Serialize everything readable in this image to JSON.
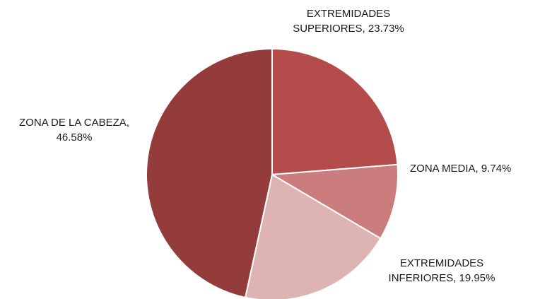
{
  "chart_data": {
    "type": "pie",
    "title": "",
    "legend": "none",
    "slices": [
      {
        "label_line1": "EXTREMIDADES",
        "label_line2": "SUPERIORES, 23.73%",
        "category": "EXTREMIDADES SUPERIORES",
        "value": 23.73,
        "color": "#B34C4A"
      },
      {
        "label_line1": "ZONA MEDIA, 9.74%",
        "label_line2": "",
        "category": "ZONA MEDIA",
        "value": 9.74,
        "color": "#CA7D7C"
      },
      {
        "label_line1": "EXTREMIDADES",
        "label_line2": "INFERIORES, 19.95%",
        "category": "EXTREMIDADES INFERIORES",
        "value": 19.95,
        "color": "#DDB3B3"
      },
      {
        "label_line1": "ZONA DE LA CABEZA,",
        "label_line2": "46.58%",
        "category": "ZONA DE LA CABEZA",
        "value": 46.58,
        "color": "#943C3B"
      }
    ]
  }
}
